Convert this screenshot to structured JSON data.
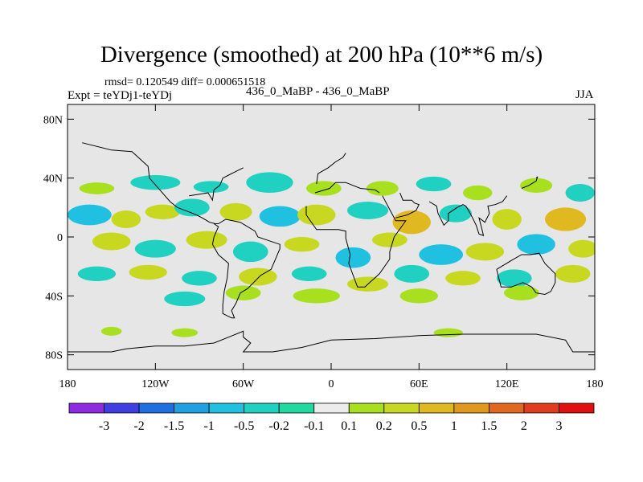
{
  "title": "Divergence (smoothed) at 200 hPa (10**6 m/s)",
  "stats_line": "rmsd= 0.120549 diff= 0.000651518",
  "experiment_line": "Expt = teYDj1-teYDj",
  "center_label": "436_0_MaBP - 436_0_MaBP",
  "season": "JJA",
  "chart_data": {
    "type": "contour-map",
    "title": "Divergence (smoothed) at 200 hPa (10**6 m/s)",
    "xlim": [
      -180,
      180
    ],
    "ylim": [
      -90,
      90
    ],
    "x_ticks": [
      {
        "value": -180,
        "label": "180"
      },
      {
        "value": -120,
        "label": "120W"
      },
      {
        "value": -60,
        "label": "60W"
      },
      {
        "value": 0,
        "label": "0"
      },
      {
        "value": 60,
        "label": "60E"
      },
      {
        "value": 120,
        "label": "120E"
      },
      {
        "value": 180,
        "label": "180"
      }
    ],
    "y_ticks": [
      {
        "value": 80,
        "label": "80N"
      },
      {
        "value": 40,
        "label": "40N"
      },
      {
        "value": 0,
        "label": "0"
      },
      {
        "value": -40,
        "label": "40S"
      },
      {
        "value": -80,
        "label": "80S"
      }
    ],
    "colorbar": {
      "levels": [
        "-3",
        "-2",
        "-1.5",
        "-1",
        "-0.5",
        "-0.2",
        "-0.1",
        "0.1",
        "0.2",
        "0.5",
        "1",
        "1.5",
        "2",
        "3"
      ],
      "colors": [
        "#8e2ae0",
        "#3f3ee0",
        "#1f6fe0",
        "#1fa0e0",
        "#20c0e0",
        "#20d0c0",
        "#20d8a0",
        "#ececec",
        "#a8e020",
        "#c8d820",
        "#e0b820",
        "#e09820",
        "#e06820",
        "#e03c20",
        "#e01010"
      ]
    },
    "background_color": "#e6e6e6",
    "blobs": [
      {
        "lon": -160,
        "lat": 33,
        "rlon": 12,
        "rlat": 4,
        "value": 0.15
      },
      {
        "lon": -120,
        "lat": 37,
        "rlon": 17,
        "rlat": 5,
        "value": -0.3
      },
      {
        "lon": -82,
        "lat": 34,
        "rlon": 12,
        "rlat": 4,
        "value": -0.2
      },
      {
        "lon": -42,
        "lat": 37,
        "rlon": 16,
        "rlat": 7,
        "value": -0.3
      },
      {
        "lon": -5,
        "lat": 33,
        "rlon": 12,
        "rlat": 5,
        "value": 0.15
      },
      {
        "lon": 35,
        "lat": 33,
        "rlon": 11,
        "rlat": 5,
        "value": 0.2
      },
      {
        "lon": 70,
        "lat": 36,
        "rlon": 12,
        "rlat": 5,
        "value": -0.2
      },
      {
        "lon": 100,
        "lat": 30,
        "rlon": 10,
        "rlat": 5,
        "value": 0.15
      },
      {
        "lon": 140,
        "lat": 35,
        "rlon": 11,
        "rlat": 5,
        "value": 0.2
      },
      {
        "lon": 170,
        "lat": 30,
        "rlon": 10,
        "rlat": 6,
        "value": -0.3
      },
      {
        "lon": -165,
        "lat": 15,
        "rlon": 15,
        "rlat": 7,
        "value": -0.6
      },
      {
        "lon": -140,
        "lat": 12,
        "rlon": 10,
        "rlat": 6,
        "value": 0.3
      },
      {
        "lon": -115,
        "lat": 17,
        "rlon": 12,
        "rlat": 5,
        "value": 0.4
      },
      {
        "lon": -95,
        "lat": 20,
        "rlon": 12,
        "rlat": 6,
        "value": -0.25
      },
      {
        "lon": -65,
        "lat": 17,
        "rlon": 11,
        "rlat": 6,
        "value": 0.4
      },
      {
        "lon": -35,
        "lat": 14,
        "rlon": 14,
        "rlat": 7,
        "value": -0.5
      },
      {
        "lon": -10,
        "lat": 15,
        "rlon": 13,
        "rlat": 7,
        "value": 0.3
      },
      {
        "lon": 25,
        "lat": 18,
        "rlon": 14,
        "rlat": 6,
        "value": -0.3
      },
      {
        "lon": 55,
        "lat": 10,
        "rlon": 13,
        "rlat": 8,
        "value": 0.6
      },
      {
        "lon": 85,
        "lat": 16,
        "rlon": 11,
        "rlat": 6,
        "value": -0.3
      },
      {
        "lon": 120,
        "lat": 12,
        "rlon": 10,
        "rlat": 7,
        "value": 0.3
      },
      {
        "lon": 160,
        "lat": 12,
        "rlon": 14,
        "rlat": 8,
        "value": 0.8
      },
      {
        "lon": -150,
        "lat": -3,
        "rlon": 13,
        "rlat": 6,
        "value": 0.5
      },
      {
        "lon": -120,
        "lat": -8,
        "rlon": 14,
        "rlat": 6,
        "value": -0.4
      },
      {
        "lon": -85,
        "lat": -2,
        "rlon": 14,
        "rlat": 6,
        "value": 0.35
      },
      {
        "lon": -55,
        "lat": -10,
        "rlon": 12,
        "rlat": 7,
        "value": -0.4
      },
      {
        "lon": -20,
        "lat": -5,
        "rlon": 12,
        "rlat": 5,
        "value": 0.3
      },
      {
        "lon": 15,
        "lat": -14,
        "rlon": 12,
        "rlat": 7,
        "value": -0.6
      },
      {
        "lon": 40,
        "lat": -2,
        "rlon": 12,
        "rlat": 5,
        "value": 0.4
      },
      {
        "lon": 75,
        "lat": -12,
        "rlon": 15,
        "rlat": 7,
        "value": -0.5
      },
      {
        "lon": 105,
        "lat": -10,
        "rlon": 13,
        "rlat": 6,
        "value": 0.3
      },
      {
        "lon": 140,
        "lat": -5,
        "rlon": 13,
        "rlat": 7,
        "value": -0.6
      },
      {
        "lon": 172,
        "lat": -8,
        "rlon": 10,
        "rlat": 6,
        "value": 0.4
      },
      {
        "lon": -160,
        "lat": -25,
        "rlon": 13,
        "rlat": 5,
        "value": -0.25
      },
      {
        "lon": -125,
        "lat": -24,
        "rlon": 13,
        "rlat": 5,
        "value": 0.3
      },
      {
        "lon": -90,
        "lat": -28,
        "rlon": 12,
        "rlat": 5,
        "value": -0.3
      },
      {
        "lon": -50,
        "lat": -27,
        "rlon": 13,
        "rlat": 6,
        "value": 0.35
      },
      {
        "lon": -15,
        "lat": -25,
        "rlon": 12,
        "rlat": 5,
        "value": -0.25
      },
      {
        "lon": 25,
        "lat": -32,
        "rlon": 14,
        "rlat": 5,
        "value": 0.3
      },
      {
        "lon": 55,
        "lat": -25,
        "rlon": 12,
        "rlat": 6,
        "value": -0.3
      },
      {
        "lon": 90,
        "lat": -28,
        "rlon": 12,
        "rlat": 5,
        "value": 0.3
      },
      {
        "lon": 125,
        "lat": -28,
        "rlon": 12,
        "rlat": 6,
        "value": -0.35
      },
      {
        "lon": 165,
        "lat": -25,
        "rlon": 12,
        "rlat": 6,
        "value": 0.25
      },
      {
        "lon": -100,
        "lat": -42,
        "rlon": 14,
        "rlat": 5,
        "value": -0.3
      },
      {
        "lon": -60,
        "lat": -38,
        "rlon": 12,
        "rlat": 5,
        "value": 0.2
      },
      {
        "lon": -10,
        "lat": -40,
        "rlon": 16,
        "rlat": 5,
        "value": 0.15
      },
      {
        "lon": 60,
        "lat": -40,
        "rlon": 13,
        "rlat": 5,
        "value": 0.15
      },
      {
        "lon": 130,
        "lat": -38,
        "rlon": 12,
        "rlat": 5,
        "value": 0.15
      },
      {
        "lon": -100,
        "lat": -65,
        "rlon": 9,
        "rlat": 3,
        "value": 0.15
      },
      {
        "lon": -150,
        "lat": -64,
        "rlon": 7,
        "rlat": 3,
        "value": 0.15
      },
      {
        "lon": 80,
        "lat": -65,
        "rlon": 10,
        "rlat": 3,
        "value": 0.15
      }
    ],
    "coastline_segments": [
      [
        [
          -11,
          30
        ],
        [
          -1,
          33
        ],
        [
          3,
          37
        ],
        [
          10,
          37
        ],
        [
          20,
          33
        ],
        [
          30,
          32
        ],
        [
          33,
          30
        ]
      ],
      [
        [
          -17,
          21
        ],
        [
          -17,
          15
        ],
        [
          -10,
          5
        ],
        [
          5,
          5
        ],
        [
          10,
          4
        ],
        [
          10,
          -1
        ],
        [
          13,
          -12
        ],
        [
          12,
          -18
        ],
        [
          18,
          -34
        ],
        [
          23,
          -34
        ],
        [
          33,
          -25
        ],
        [
          40,
          -15
        ],
        [
          40,
          -10
        ],
        [
          43,
          0
        ],
        [
          51,
          11
        ],
        [
          44,
          11
        ],
        [
          43,
          13
        ],
        [
          35,
          28
        ]
      ],
      [
        [
          -80,
          9
        ],
        [
          -77,
          7
        ],
        [
          -80,
          0
        ],
        [
          -81,
          -5
        ],
        [
          -77,
          -12
        ],
        [
          -70,
          -18
        ],
        [
          -71,
          -28
        ],
        [
          -73,
          -37
        ],
        [
          -74,
          -46
        ],
        [
          -74,
          -52
        ],
        [
          -68,
          -55
        ],
        [
          -66,
          -55
        ],
        [
          -68,
          -50
        ],
        [
          -65,
          -45
        ],
        [
          -62,
          -38
        ],
        [
          -57,
          -35
        ],
        [
          -48,
          -26
        ],
        [
          -41,
          -22
        ],
        [
          -35,
          -8
        ],
        [
          -35,
          -5
        ],
        [
          -44,
          -2
        ],
        [
          -50,
          0
        ],
        [
          -52,
          4
        ],
        [
          -62,
          10
        ],
        [
          -72,
          12
        ],
        [
          -77,
          9
        ],
        [
          -80,
          9
        ]
      ],
      [
        [
          -105,
          20
        ],
        [
          -97,
          17
        ],
        [
          -92,
          15
        ],
        [
          -88,
          13
        ],
        [
          -83,
          10
        ],
        [
          -79,
          9
        ]
      ],
      [
        [
          47,
          30
        ],
        [
          49,
          25
        ],
        [
          55,
          25
        ],
        [
          57,
          23
        ],
        [
          60,
          22
        ],
        [
          58,
          18
        ],
        [
          52,
          15
        ],
        [
          44,
          13
        ]
      ],
      [
        [
          67,
          24
        ],
        [
          72,
          21
        ],
        [
          73,
          16
        ],
        [
          77,
          8
        ],
        [
          80,
          11
        ],
        [
          80,
          16
        ],
        [
          86,
          20
        ],
        [
          90,
          22
        ],
        [
          92,
          21
        ],
        [
          95,
          16
        ],
        [
          99,
          8
        ],
        [
          101,
          2
        ],
        [
          104,
          1
        ],
        [
          103,
          5
        ],
        [
          101,
          13
        ],
        [
          105,
          10
        ],
        [
          108,
          16
        ],
        [
          107,
          21
        ],
        [
          112,
          22
        ],
        [
          117,
          24
        ],
        [
          120,
          28
        ]
      ],
      [
        [
          113,
          -22
        ],
        [
          114,
          -26
        ],
        [
          116,
          -34
        ],
        [
          123,
          -34
        ],
        [
          131,
          -31
        ],
        [
          137,
          -34
        ],
        [
          140,
          -38
        ],
        [
          146,
          -39
        ],
        [
          150,
          -37
        ],
        [
          153,
          -31
        ],
        [
          153,
          -25
        ],
        [
          146,
          -18
        ],
        [
          142,
          -11
        ],
        [
          136,
          -12
        ],
        [
          130,
          -12
        ],
        [
          123,
          -16
        ],
        [
          113,
          -22
        ]
      ],
      [
        [
          130,
          33
        ],
        [
          135,
          35
        ],
        [
          140,
          38
        ],
        [
          141,
          41
        ],
        [
          140,
          40
        ]
      ],
      [
        [
          -180,
          -78
        ],
        [
          -150,
          -78
        ],
        [
          -140,
          -76
        ],
        [
          -120,
          -74
        ],
        [
          -100,
          -74
        ],
        [
          -80,
          -72
        ],
        [
          -70,
          -68
        ],
        [
          -60,
          -64
        ],
        [
          -60,
          -68
        ],
        [
          -55,
          -72
        ],
        [
          -60,
          -78
        ],
        [
          -40,
          -78
        ],
        [
          -20,
          -75
        ],
        [
          0,
          -70
        ],
        [
          30,
          -69
        ],
        [
          60,
          -67
        ],
        [
          90,
          -66
        ],
        [
          120,
          -66
        ],
        [
          140,
          -66
        ],
        [
          160,
          -70
        ],
        [
          165,
          -78
        ],
        [
          180,
          -78
        ]
      ],
      [
        [
          -170,
          64
        ],
        [
          -150,
          59
        ],
        [
          -136,
          58
        ],
        [
          -125,
          48
        ],
        [
          -124,
          40
        ],
        [
          -117,
          32
        ],
        [
          -110,
          24
        ],
        [
          -105,
          20
        ]
      ],
      [
        [
          -97,
          28
        ],
        [
          -90,
          29
        ],
        [
          -84,
          30
        ],
        [
          -81,
          25
        ],
        [
          -80,
          32
        ],
        [
          -76,
          35
        ],
        [
          -74,
          40
        ],
        [
          -70,
          42
        ],
        [
          -66,
          44
        ],
        [
          -60,
          47
        ]
      ],
      [
        [
          -10,
          36
        ],
        [
          -9,
          43
        ],
        [
          -2,
          47
        ],
        [
          3,
          51
        ],
        [
          8,
          54
        ],
        [
          10,
          57
        ]
      ]
    ]
  }
}
